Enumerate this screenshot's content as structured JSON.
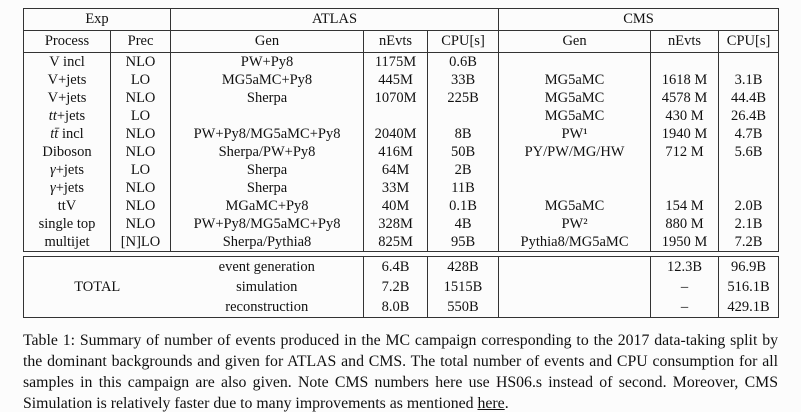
{
  "table": {
    "group_headers": {
      "exp": "Exp",
      "atlas": "ATLAS",
      "cms": "CMS"
    },
    "col_headers": {
      "process": "Process",
      "prec": "Prec",
      "atlas_gen": "Gen",
      "atlas_nevts": "nEvts",
      "atlas_cpu": "CPU[s]",
      "cms_gen": "Gen",
      "cms_nevts": "nEvts",
      "cms_cpu": "CPU[s]"
    },
    "rows": [
      {
        "proc_math": "",
        "proc_text": "V incl",
        "prec": "NLO",
        "atlas_gen": "PW+Py8",
        "atlas_nevts": "1175M",
        "atlas_cpu": "0.6B",
        "cms_gen": "",
        "cms_nevts": "",
        "cms_cpu": ""
      },
      {
        "proc_math": "",
        "proc_text": "V+jets",
        "prec": "LO",
        "atlas_gen": "MG5aMC+Py8",
        "atlas_nevts": "445M",
        "atlas_cpu": "33B",
        "cms_gen": "MG5aMC",
        "cms_nevts": "1618 M",
        "cms_cpu": "3.1B"
      },
      {
        "proc_math": "",
        "proc_text": "V+jets",
        "prec": "NLO",
        "atlas_gen": "Sherpa",
        "atlas_nevts": "1070M",
        "atlas_cpu": "225B",
        "cms_gen": "MG5aMC",
        "cms_nevts": "4578 M",
        "cms_cpu": "44.4B"
      },
      {
        "proc_math": "tt",
        "proc_text": "+jets",
        "prec": "LO",
        "atlas_gen": "",
        "atlas_nevts": "",
        "atlas_cpu": "",
        "cms_gen": "MG5aMC",
        "cms_nevts": "430 M",
        "cms_cpu": "26.4B"
      },
      {
        "proc_math": "tt̄",
        "proc_text": " incl",
        "prec": "NLO",
        "atlas_gen": "PW+Py8/MG5aMC+Py8",
        "atlas_nevts": "2040M",
        "atlas_cpu": "8B",
        "cms_gen": "PW¹",
        "cms_nevts": "1940 M",
        "cms_cpu": "4.7B"
      },
      {
        "proc_math": "",
        "proc_text": "Diboson",
        "prec": "NLO",
        "atlas_gen": "Sherpa/PW+Py8",
        "atlas_nevts": "416M",
        "atlas_cpu": "50B",
        "cms_gen": "PY/PW/MG/HW",
        "cms_nevts": "712 M",
        "cms_cpu": "5.6B"
      },
      {
        "proc_math": "γ",
        "proc_text": "+jets",
        "prec": "LO",
        "atlas_gen": "Sherpa",
        "atlas_nevts": "64M",
        "atlas_cpu": "2B",
        "cms_gen": "",
        "cms_nevts": "",
        "cms_cpu": ""
      },
      {
        "proc_math": "γ",
        "proc_text": "+jets",
        "prec": "NLO",
        "atlas_gen": "Sherpa",
        "atlas_nevts": "33M",
        "atlas_cpu": "11B",
        "cms_gen": "",
        "cms_nevts": "",
        "cms_cpu": ""
      },
      {
        "proc_math": "",
        "proc_text": "ttV",
        "prec": "NLO",
        "atlas_gen": "MGaMC+Py8",
        "atlas_nevts": "40M",
        "atlas_cpu": "0.1B",
        "cms_gen": "MG5aMC",
        "cms_nevts": "154 M",
        "cms_cpu": "2.0B"
      },
      {
        "proc_math": "",
        "proc_text": "single top",
        "prec": "NLO",
        "atlas_gen": "PW+Py8/MG5aMC+Py8",
        "atlas_nevts": "328M",
        "atlas_cpu": "4B",
        "cms_gen": "PW²",
        "cms_nevts": "880 M",
        "cms_cpu": "2.1B"
      },
      {
        "proc_math": "",
        "proc_text": "multijet",
        "prec": "[N]LO",
        "atlas_gen": "Sherpa/Pythia8",
        "atlas_nevts": "825M",
        "atlas_cpu": "95B",
        "cms_gen": "Pythia8/MG5aMC",
        "cms_nevts": "1950 M",
        "cms_cpu": "7.2B"
      }
    ],
    "total": {
      "label": "TOTAL",
      "rows": [
        {
          "stage": "event generation",
          "atlas_nevts": "6.4B",
          "atlas_cpu": "428B",
          "cms_gen": "",
          "cms_nevts": "12.3B",
          "cms_cpu": "96.9B"
        },
        {
          "stage": "simulation",
          "atlas_nevts": "7.2B",
          "atlas_cpu": "1515B",
          "cms_gen": "",
          "cms_nevts": "–",
          "cms_cpu": "516.1B"
        },
        {
          "stage": "reconstruction",
          "atlas_nevts": "8.0B",
          "atlas_cpu": "550B",
          "cms_gen": "",
          "cms_nevts": "–",
          "cms_cpu": "429.1B"
        }
      ]
    }
  },
  "caption": {
    "before_link": "Table 1: Summary of number of events produced in the MC campaign corresponding to the 2017 data-taking split by the dominant backgrounds and given for ATLAS and CMS. The total number of events and CPU consumption for all samples in this campaign are also given. Note CMS numbers here use HS06.s instead of second. Moreover, CMS Simulation is relatively faster due to many improvements as mentioned ",
    "link": "here",
    "after_link": "."
  }
}
